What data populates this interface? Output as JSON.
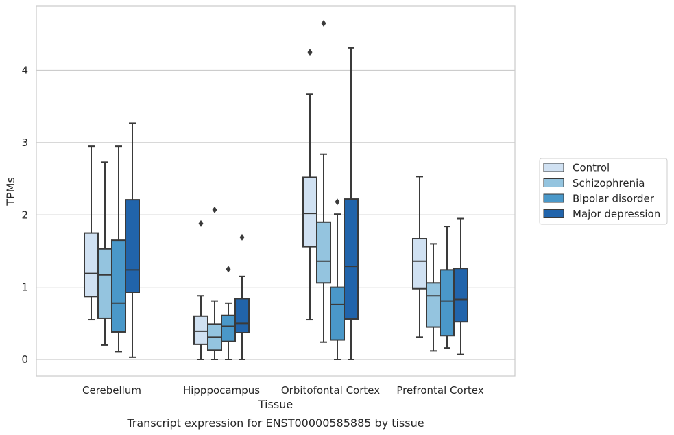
{
  "caption": "Transcript expression for ENST00000585885 by tissue",
  "chart_data": {
    "type": "box",
    "xlabel": "Tissue",
    "ylabel": "TPMs",
    "ylim": [
      -0.22,
      4.9
    ],
    "yticks": [
      0,
      1,
      2,
      3,
      4
    ],
    "grid": "horizontal",
    "legend_position": "right",
    "categories": [
      "Cerebellum",
      "Hipppocampus",
      "Orbitofontal Cortex",
      "Prefrontal Cortex"
    ],
    "series": [
      {
        "name": "Control",
        "color": "#d0e1f2",
        "boxes": [
          {
            "whislo": 0.55,
            "q1": 0.87,
            "med": 1.19,
            "q3": 1.75,
            "whishi": 2.95,
            "fliers": []
          },
          {
            "whislo": 0.0,
            "q1": 0.21,
            "med": 0.39,
            "q3": 0.6,
            "whishi": 0.88,
            "fliers": [
              1.88
            ]
          },
          {
            "whislo": 0.55,
            "q1": 1.56,
            "med": 2.02,
            "q3": 2.52,
            "whishi": 3.67,
            "fliers": [
              4.25
            ]
          },
          {
            "whislo": 0.31,
            "q1": 0.98,
            "med": 1.36,
            "q3": 1.67,
            "whishi": 2.53,
            "fliers": []
          }
        ]
      },
      {
        "name": "Schizophrenia",
        "color": "#94c4df",
        "boxes": [
          {
            "whislo": 0.2,
            "q1": 0.57,
            "med": 1.17,
            "q3": 1.53,
            "whishi": 2.73,
            "fliers": []
          },
          {
            "whislo": 0.0,
            "q1": 0.13,
            "med": 0.31,
            "q3": 0.49,
            "whishi": 0.81,
            "fliers": [
              2.07
            ]
          },
          {
            "whislo": 0.24,
            "q1": 1.06,
            "med": 1.36,
            "q3": 1.9,
            "whishi": 2.84,
            "fliers": [
              4.65
            ]
          },
          {
            "whislo": 0.12,
            "q1": 0.45,
            "med": 0.88,
            "q3": 1.06,
            "whishi": 1.6,
            "fliers": []
          }
        ]
      },
      {
        "name": "Bipolar disorder",
        "color": "#4a98c9",
        "boxes": [
          {
            "whislo": 0.11,
            "q1": 0.38,
            "med": 0.78,
            "q3": 1.65,
            "whishi": 2.95,
            "fliers": []
          },
          {
            "whislo": 0.0,
            "q1": 0.25,
            "med": 0.46,
            "q3": 0.61,
            "whishi": 0.78,
            "fliers": [
              1.25
            ]
          },
          {
            "whislo": 0.0,
            "q1": 0.27,
            "med": 0.76,
            "q3": 1.0,
            "whishi": 2.01,
            "fliers": [
              2.18
            ]
          },
          {
            "whislo": 0.16,
            "q1": 0.33,
            "med": 0.81,
            "q3": 1.24,
            "whishi": 1.84,
            "fliers": []
          }
        ]
      },
      {
        "name": "Major depression",
        "color": "#2164ab",
        "boxes": [
          {
            "whislo": 0.03,
            "q1": 0.93,
            "med": 1.24,
            "q3": 2.21,
            "whishi": 3.27,
            "fliers": []
          },
          {
            "whislo": 0.0,
            "q1": 0.37,
            "med": 0.5,
            "q3": 0.84,
            "whishi": 1.15,
            "fliers": [
              1.69
            ]
          },
          {
            "whislo": 0.0,
            "q1": 0.56,
            "med": 1.29,
            "q3": 2.22,
            "whishi": 4.31,
            "fliers": []
          },
          {
            "whislo": 0.07,
            "q1": 0.52,
            "med": 0.83,
            "q3": 1.26,
            "whishi": 1.95,
            "fliers": []
          }
        ]
      }
    ]
  }
}
